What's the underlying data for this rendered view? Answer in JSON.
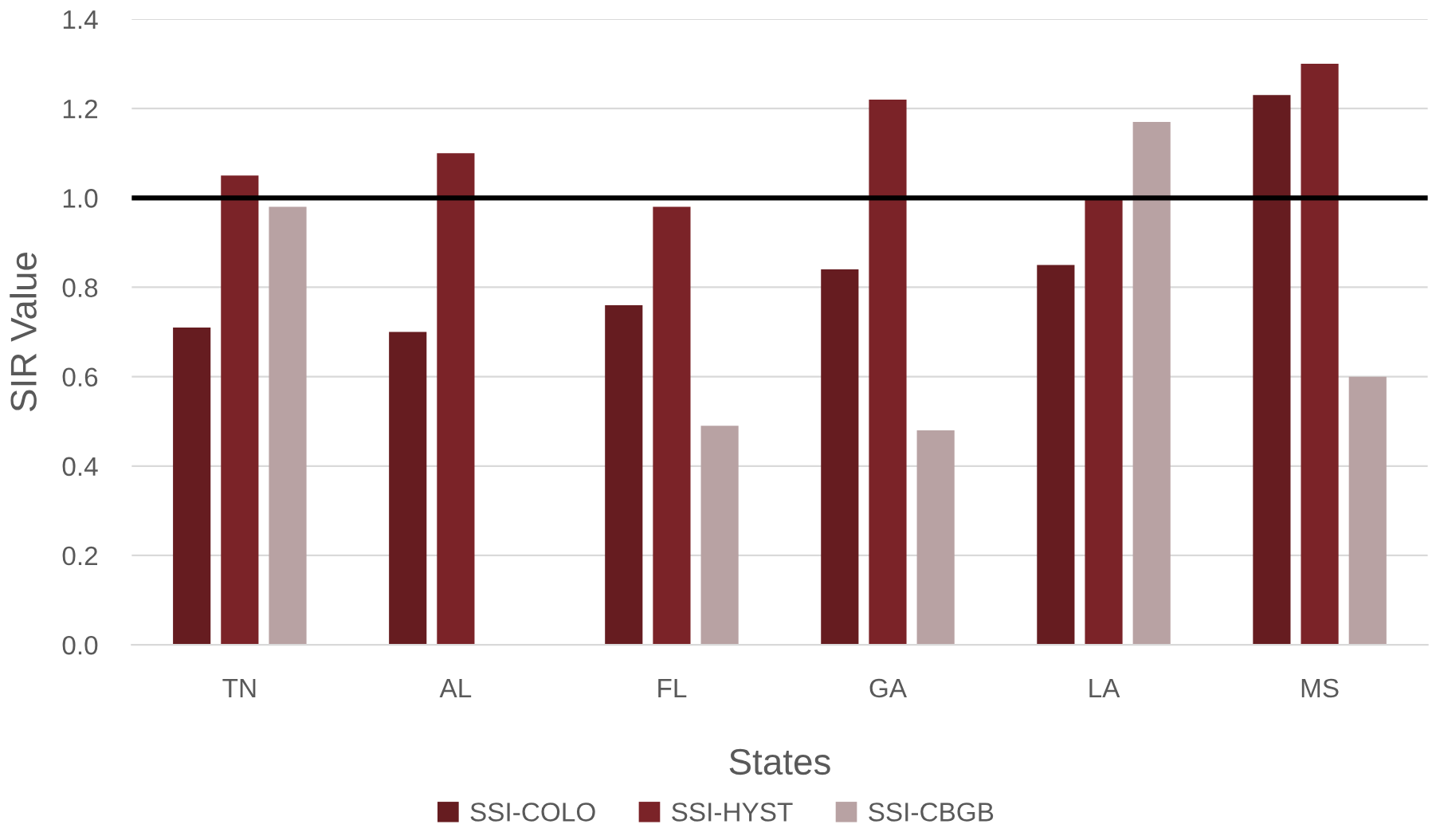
{
  "chart_data": {
    "type": "bar",
    "xlabel": "States",
    "ylabel": "SIR Value",
    "categories": [
      "TN",
      "AL",
      "FL",
      "GA",
      "LA",
      "MS"
    ],
    "series": [
      {
        "name": "SSI-COLO",
        "color": "#661c20",
        "values": [
          0.71,
          0.7,
          0.76,
          0.84,
          0.85,
          1.23
        ]
      },
      {
        "name": "SSI-HYST",
        "color": "#7b2328",
        "values": [
          1.05,
          1.1,
          0.98,
          1.22,
          1.0,
          1.3
        ]
      },
      {
        "name": "SSI-CBGB",
        "color": "#b8a2a3",
        "values": [
          0.98,
          null,
          0.49,
          0.48,
          1.17,
          0.6
        ]
      }
    ],
    "ylim": [
      0,
      1.4
    ],
    "yticks": [
      {
        "value": 0,
        "label": "0.0"
      },
      {
        "value": 0.2,
        "label": "0.2"
      },
      {
        "value": 0.4,
        "label": "0.4"
      },
      {
        "value": 0.6,
        "label": "0.6"
      },
      {
        "value": 0.8,
        "label": "0.8"
      },
      {
        "value": 1.0,
        "label": "1.0"
      },
      {
        "value": 1.2,
        "label": "1.2"
      },
      {
        "value": 1.4,
        "label": "1.4"
      }
    ],
    "grid": "y",
    "legend": "bottom",
    "ref_lines": [
      {
        "axis": "y",
        "value": 1.0,
        "color": "#000000"
      }
    ]
  }
}
